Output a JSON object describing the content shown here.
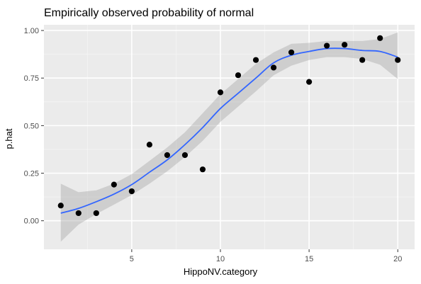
{
  "chart_data": {
    "type": "scatter",
    "title": "Empirically observed probability of normal",
    "xlabel": "HippoNV.category",
    "ylabel": "p.hat",
    "xlim": [
      0.05,
      20.95
    ],
    "ylim": [
      -0.15,
      1.03
    ],
    "x_ticks": [
      5,
      10,
      15,
      20
    ],
    "x_minor_ticks": [
      2.5,
      7.5,
      12.5,
      17.5
    ],
    "y_ticks": [
      0.0,
      0.25,
      0.5,
      0.75,
      1.0
    ],
    "y_minor_ticks": [
      0.125,
      0.375,
      0.625,
      0.875
    ],
    "x_tick_labels": [
      "5",
      "10",
      "15",
      "20"
    ],
    "y_tick_labels": [
      "0.00",
      "0.25",
      "0.50",
      "0.75",
      "1.00"
    ],
    "grid": true,
    "legend": "none",
    "series": [
      {
        "type": "scatter",
        "x": [
          1,
          2,
          3,
          4,
          5,
          6,
          7,
          8,
          9,
          10,
          11,
          12,
          13,
          14,
          15,
          16,
          17,
          18,
          19,
          20
        ],
        "y": [
          0.08,
          0.04,
          0.04,
          0.19,
          0.155,
          0.4,
          0.345,
          0.345,
          0.27,
          0.675,
          0.765,
          0.845,
          0.805,
          0.885,
          0.73,
          0.92,
          0.925,
          0.845,
          0.96,
          0.845
        ]
      },
      {
        "type": "line",
        "smooth": true,
        "x": [
          1,
          2,
          3,
          4,
          5,
          6,
          7,
          8,
          9,
          10,
          11,
          12,
          13,
          14,
          15,
          16,
          17,
          18,
          19,
          20
        ],
        "y": [
          0.04,
          0.065,
          0.1,
          0.14,
          0.19,
          0.255,
          0.32,
          0.4,
          0.49,
          0.59,
          0.67,
          0.75,
          0.83,
          0.87,
          0.89,
          0.905,
          0.905,
          0.895,
          0.89,
          0.86
        ],
        "ci_lower": [
          -0.11,
          -0.02,
          0.035,
          0.085,
          0.135,
          0.195,
          0.26,
          0.335,
          0.42,
          0.52,
          0.6,
          0.68,
          0.765,
          0.815,
          0.845,
          0.86,
          0.86,
          0.85,
          0.82,
          0.745
        ],
        "ci_upper": [
          0.195,
          0.15,
          0.16,
          0.195,
          0.245,
          0.315,
          0.385,
          0.465,
          0.565,
          0.665,
          0.745,
          0.825,
          0.885,
          0.93,
          0.935,
          0.945,
          0.945,
          0.945,
          0.955,
          0.99
        ]
      }
    ],
    "colors": {
      "panel_background": "#ebebeb",
      "grid_major": "#ffffff",
      "grid_minor": "#f5f5f5",
      "point": "#000000",
      "smooth_line": "#3366ff",
      "ci_band": "#999999",
      "tick_label": "#4d4d4d",
      "tick_mark": "#333333"
    }
  }
}
